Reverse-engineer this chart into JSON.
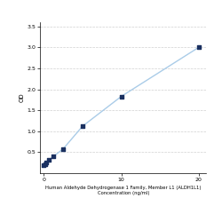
{
  "x": [
    0,
    0.156,
    0.313,
    0.625,
    1.25,
    2.5,
    5,
    10,
    20
  ],
  "y": [
    0.198,
    0.22,
    0.25,
    0.31,
    0.4,
    0.58,
    1.12,
    1.83,
    3.0
  ],
  "line_color": "#aacce8",
  "marker_color": "#1a3060",
  "marker_size": 3.5,
  "xlabel_line1": "Human Aldehyde Dehydrogenase 1 Family, Member L1 (ALDH1L1)",
  "xlabel_line2": "Concentration (ng/ml)",
  "ylabel": "OD",
  "xlim": [
    -0.5,
    21
  ],
  "ylim": [
    0.0,
    3.6
  ],
  "yticks": [
    0.5,
    1.0,
    1.5,
    2.0,
    2.5,
    3.0,
    3.5
  ],
  "xticks": [
    0,
    10,
    20
  ],
  "background_color": "#ffffff",
  "grid_color": "#d0d0d0"
}
